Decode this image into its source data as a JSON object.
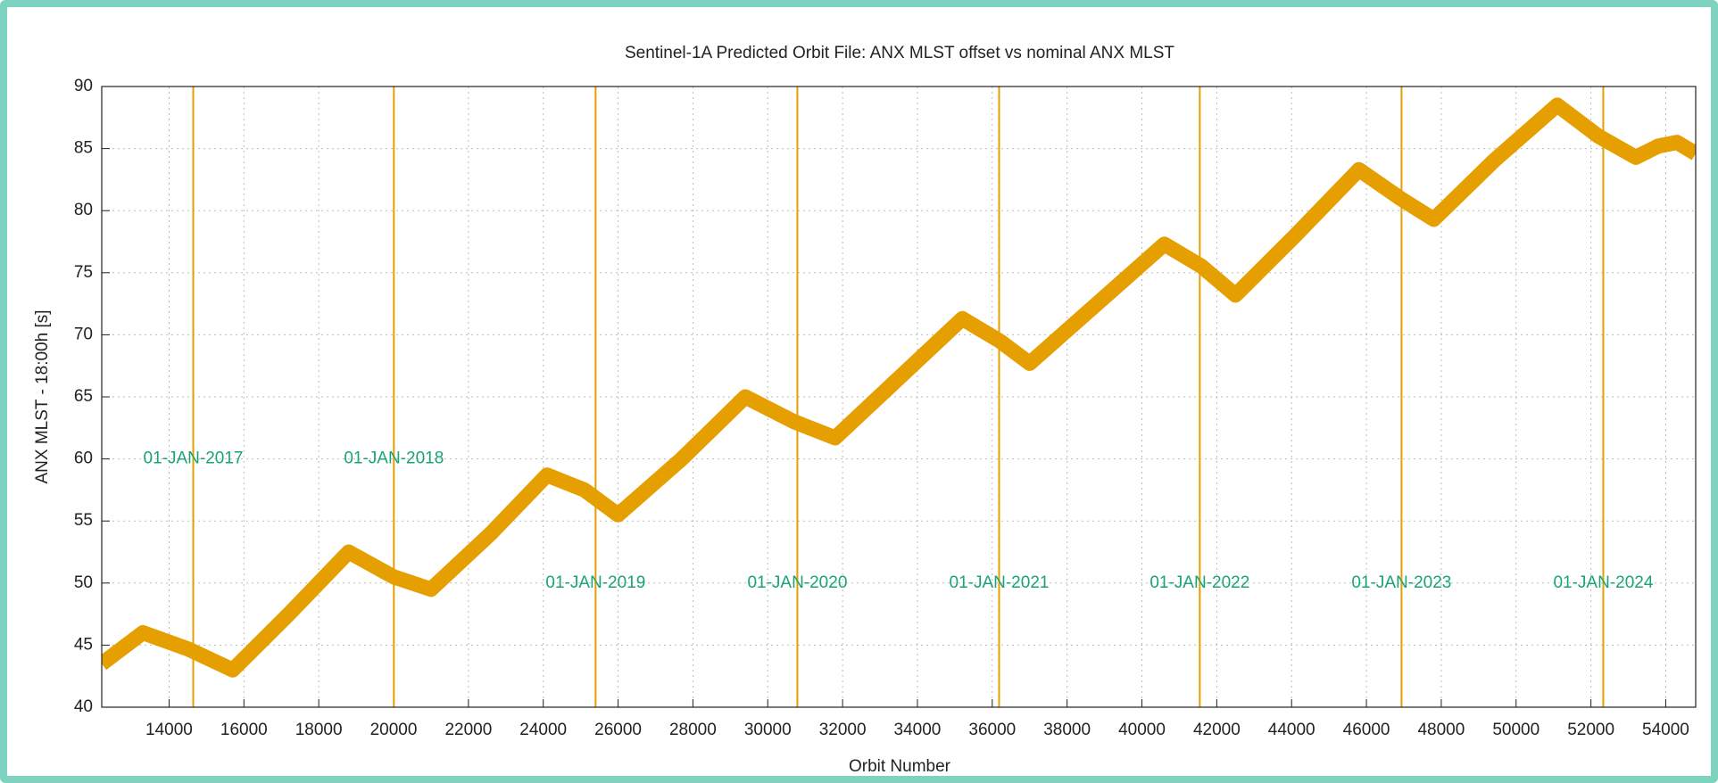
{
  "chart_data": {
    "type": "line",
    "title": "Sentinel-1A Predicted Orbit File: ANX MLST offset vs nominal ANX MLST",
    "xlabel": "Orbit Number",
    "ylabel": "ANX MLST - 18:00h [s]",
    "xlim": [
      12200,
      54800
    ],
    "ylim": [
      40,
      90
    ],
    "xticks": [
      14000,
      16000,
      18000,
      20000,
      22000,
      24000,
      26000,
      28000,
      30000,
      32000,
      34000,
      36000,
      38000,
      40000,
      42000,
      44000,
      46000,
      48000,
      50000,
      52000,
      54000
    ],
    "yticks": [
      40,
      45,
      50,
      55,
      60,
      65,
      70,
      75,
      80,
      85,
      90
    ],
    "grid": true,
    "x": [
      12200,
      13300,
      14500,
      15700,
      17200,
      18800,
      20000,
      21000,
      22600,
      24100,
      25100,
      26000,
      27700,
      29400,
      30700,
      31800,
      33500,
      35200,
      36200,
      37000,
      38800,
      40600,
      41600,
      42500,
      44100,
      45800,
      46900,
      47800,
      49400,
      51100,
      52200,
      53200,
      53800,
      54300,
      54800
    ],
    "series": [
      {
        "color": "#e69f00",
        "values": [
          43.5,
          46,
          44.7,
          43,
          47.5,
          52.5,
          50.5,
          49.5,
          54,
          58.7,
          57.5,
          55.5,
          60,
          65,
          63,
          61.7,
          66.5,
          71.3,
          69.5,
          67.7,
          72.5,
          77.3,
          75.5,
          73.2,
          78,
          83.3,
          81,
          79.3,
          84,
          88.5,
          86,
          84.3,
          85.2,
          85.5,
          84.6
        ]
      }
    ],
    "vlines_color": "#e69f00",
    "annotation_color": "#1aa37a",
    "annotations": [
      {
        "text": "01-JAN-2017",
        "x": 14645,
        "y": 60
      },
      {
        "text": "01-JAN-2018",
        "x": 20007,
        "y": 60
      },
      {
        "text": "01-JAN-2019",
        "x": 25399,
        "y": 50
      },
      {
        "text": "01-JAN-2020",
        "x": 30791,
        "y": 50
      },
      {
        "text": "01-JAN-2021",
        "x": 36183,
        "y": 50
      },
      {
        "text": "01-JAN-2022",
        "x": 41546,
        "y": 50
      },
      {
        "text": "01-JAN-2023",
        "x": 46938,
        "y": 50
      },
      {
        "text": "01-JAN-2024",
        "x": 52330,
        "y": 50
      }
    ]
  }
}
